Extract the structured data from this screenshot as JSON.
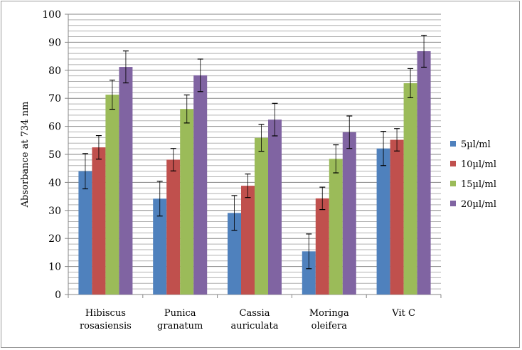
{
  "chart_data": {
    "type": "bar",
    "title": "",
    "xlabel": "",
    "ylabel": "Absorbance at 734 nm",
    "ylim": [
      0,
      100
    ],
    "yticks": [
      0,
      10,
      20,
      30,
      40,
      50,
      60,
      70,
      80,
      90,
      100
    ],
    "grid": true,
    "legend_position": "right",
    "categories": [
      [
        "Hibiscus",
        "rosasiensis"
      ],
      [
        "Punica",
        "granatum"
      ],
      [
        "Cassia",
        "auriculata"
      ],
      [
        "Moringa",
        "oleifera"
      ],
      [
        "Vit C"
      ]
    ],
    "series": [
      {
        "name": "5µl/ml",
        "color": "#4f81bd",
        "values": [
          44.0,
          34.2,
          29.1,
          15.4,
          52.1
        ],
        "errors": [
          6.3,
          6.2,
          6.2,
          6.2,
          6.1
        ]
      },
      {
        "name": "10µl/ml",
        "color": "#c0504d",
        "values": [
          52.5,
          48.1,
          38.8,
          34.3,
          55.2
        ],
        "errors": [
          4.2,
          4.0,
          4.2,
          4.0,
          4.0
        ]
      },
      {
        "name": "15µl/ml",
        "color": "#9bbb59",
        "values": [
          71.3,
          66.2,
          55.9,
          48.4,
          75.4
        ],
        "errors": [
          5.2,
          5.0,
          4.8,
          5.0,
          5.2
        ]
      },
      {
        "name": "20µl/ml",
        "color": "#8064a2",
        "values": [
          81.2,
          78.2,
          62.4,
          57.9,
          86.8
        ],
        "errors": [
          5.7,
          5.8,
          5.8,
          5.8,
          5.7
        ]
      }
    ]
  }
}
